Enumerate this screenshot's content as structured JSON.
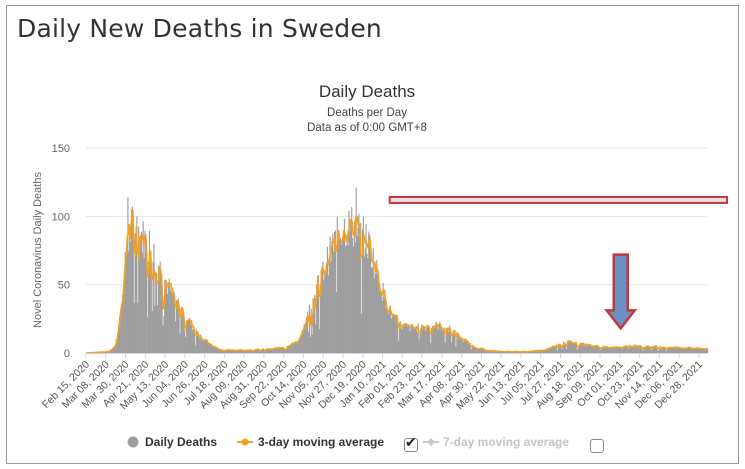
{
  "page_title": "Daily New Deaths in Sweden",
  "colors": {
    "bars": "#9e9e9e",
    "ma3": "#f7a01e",
    "ma7": "#c9c9c9",
    "grid": "#e6e6e6",
    "annotation": "#c0393d",
    "arrow_fill": "#6d90c4"
  },
  "legend": {
    "daily": "Daily Deaths",
    "ma3": "3-day moving average",
    "ma7": "7-day moving average",
    "ma3_checked": "✔"
  },
  "chart_data": {
    "type": "bar",
    "title": "Daily Deaths",
    "subtitle_line1": "Deaths per Day",
    "subtitle_line2": "Data as of 0:00 GMT+8",
    "ylabel": "Novel Coronavirus Daily Deaths",
    "xlabel": "",
    "ylim": [
      0,
      150
    ],
    "yticks": [
      0,
      50,
      100,
      150
    ],
    "x_start": "2020-02-15",
    "x_end": "2022-01-06",
    "xtick_labels": [
      "Feb 15, 2020",
      "Mar 08, 2020",
      "Mar 30, 2020",
      "Apr 21, 2020",
      "May 13, 2020",
      "Jun 04, 2020",
      "Jun 26, 2020",
      "Jul 18, 2020",
      "Aug 09, 2020",
      "Aug 31, 2020",
      "Sep 22, 2020",
      "Oct 14, 2020",
      "Nov 05, 2020",
      "Nov 27, 2020",
      "Dec 19, 2020",
      "Jan 10, 2021",
      "Feb 01, 2021",
      "Feb 23, 2021",
      "Mar 17, 2021",
      "Apr 08, 2021",
      "Apr 30, 2021",
      "May 22, 2021",
      "Jun 13, 2021",
      "Jul 05, 2021",
      "Jul 27, 2021",
      "Aug 18, 2021",
      "Sep 09, 2021",
      "Oct 01, 2021",
      "Oct 23, 2021",
      "Nov 14, 2021",
      "Dec 06, 2021",
      "Dec 28, 2021"
    ],
    "xtick_interval_days": 22,
    "series": [
      {
        "name": "Daily Deaths",
        "type": "bar",
        "shape_points": [
          {
            "day": 0,
            "value": 0
          },
          {
            "day": 25,
            "value": 1
          },
          {
            "day": 32,
            "value": 5
          },
          {
            "day": 38,
            "value": 30
          },
          {
            "day": 44,
            "value": 70
          },
          {
            "day": 50,
            "value": 93
          },
          {
            "day": 56,
            "value": 92
          },
          {
            "day": 62,
            "value": 85
          },
          {
            "day": 70,
            "value": 80
          },
          {
            "day": 80,
            "value": 65
          },
          {
            "day": 90,
            "value": 50
          },
          {
            "day": 100,
            "value": 38
          },
          {
            "day": 110,
            "value": 28
          },
          {
            "day": 120,
            "value": 18
          },
          {
            "day": 130,
            "value": 10
          },
          {
            "day": 140,
            "value": 5
          },
          {
            "day": 150,
            "value": 2
          },
          {
            "day": 160,
            "value": 2
          },
          {
            "day": 180,
            "value": 2
          },
          {
            "day": 200,
            "value": 3
          },
          {
            "day": 220,
            "value": 4
          },
          {
            "day": 235,
            "value": 8
          },
          {
            "day": 245,
            "value": 25
          },
          {
            "day": 255,
            "value": 45
          },
          {
            "day": 265,
            "value": 62
          },
          {
            "day": 275,
            "value": 80
          },
          {
            "day": 285,
            "value": 92
          },
          {
            "day": 295,
            "value": 93
          },
          {
            "day": 305,
            "value": 88
          },
          {
            "day": 315,
            "value": 78
          },
          {
            "day": 325,
            "value": 55
          },
          {
            "day": 332,
            "value": 40
          },
          {
            "day": 340,
            "value": 27
          },
          {
            "day": 350,
            "value": 20
          },
          {
            "day": 365,
            "value": 18
          },
          {
            "day": 380,
            "value": 20
          },
          {
            "day": 392,
            "value": 20
          },
          {
            "day": 405,
            "value": 17
          },
          {
            "day": 418,
            "value": 10
          },
          {
            "day": 430,
            "value": 5
          },
          {
            "day": 445,
            "value": 2
          },
          {
            "day": 460,
            "value": 1
          },
          {
            "day": 490,
            "value": 1
          },
          {
            "day": 510,
            "value": 2
          },
          {
            "day": 525,
            "value": 6
          },
          {
            "day": 535,
            "value": 8
          },
          {
            "day": 550,
            "value": 7
          },
          {
            "day": 565,
            "value": 5
          },
          {
            "day": 580,
            "value": 4
          },
          {
            "day": 600,
            "value": 5
          },
          {
            "day": 620,
            "value": 5
          },
          {
            "day": 691,
            "value": 3
          }
        ],
        "peaks": [
          {
            "day": 46,
            "value": 114
          },
          {
            "day": 300,
            "value": 121
          }
        ]
      },
      {
        "name": "3-day moving average",
        "type": "line",
        "smoothing_window_days": 3
      },
      {
        "name": "7-day moving average",
        "type": "line",
        "visible": false
      }
    ],
    "annotations": [
      {
        "type": "horizontal-bar",
        "from_day": 338,
        "to_day": 691,
        "value": 112
      },
      {
        "type": "down-arrow",
        "day": 595,
        "from_value": 72,
        "to_value": 18
      }
    ]
  }
}
